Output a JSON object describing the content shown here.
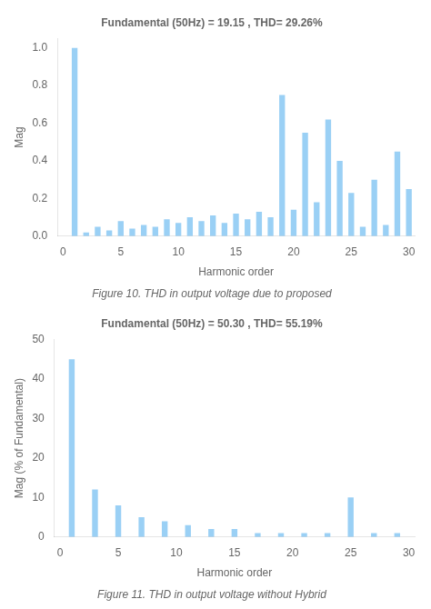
{
  "chart_data": [
    {
      "type": "bar",
      "title": "Fundamental (50Hz) = 19.15 , THD= 29.26%",
      "subtitle": "Figure 10. THD in output voltage due to proposed",
      "xlabel": "Harmonic order",
      "ylabel": "Mag",
      "x": [
        0,
        1,
        2,
        3,
        4,
        5,
        6,
        7,
        8,
        9,
        10,
        11,
        12,
        13,
        14,
        15,
        16,
        17,
        18,
        19,
        20,
        21,
        22,
        23,
        24,
        25,
        26,
        27,
        28,
        29,
        30
      ],
      "values": [
        0.0,
        1.0,
        0.02,
        0.05,
        0.03,
        0.08,
        0.04,
        0.06,
        0.05,
        0.09,
        0.07,
        0.1,
        0.08,
        0.11,
        0.07,
        0.12,
        0.09,
        0.13,
        0.1,
        0.75,
        0.14,
        0.55,
        0.18,
        0.62,
        0.4,
        0.23,
        0.05,
        0.3,
        0.06,
        0.45,
        0.25
      ],
      "xlim": [
        -0.5,
        30.5
      ],
      "xticks": [
        0,
        5,
        10,
        15,
        20,
        25,
        30
      ],
      "ylim": [
        0,
        1.05
      ],
      "yticks": [
        {
          "value": 0,
          "label": "0.0"
        },
        0.2,
        0.4,
        0.6,
        0.8,
        {
          "value": 1.0,
          "label": "1.0"
        }
      ],
      "grid": false
    },
    {
      "type": "bar",
      "title": "Fundamental (50Hz) = 50.30 , THD= 55.19%",
      "subtitle": "Figure 11. THD in output voltage without Hybrid",
      "xlabel": "Harmonic order",
      "ylabel": "Mag (% of Fundamental)",
      "x": [
        0,
        1,
        3,
        5,
        7,
        9,
        11,
        13,
        15,
        17,
        19,
        21,
        23,
        25,
        27,
        29
      ],
      "values": [
        0,
        45,
        12,
        8,
        5,
        4,
        3,
        2,
        2,
        1,
        1,
        1,
        1,
        10,
        1,
        1
      ],
      "xlim": [
        -0.5,
        30.5
      ],
      "xticks": [
        0,
        5,
        10,
        15,
        20,
        25,
        30
      ],
      "ylim": [
        0,
        50
      ],
      "yticks": [
        0,
        10,
        20,
        30,
        40,
        50
      ],
      "grid": false
    }
  ]
}
